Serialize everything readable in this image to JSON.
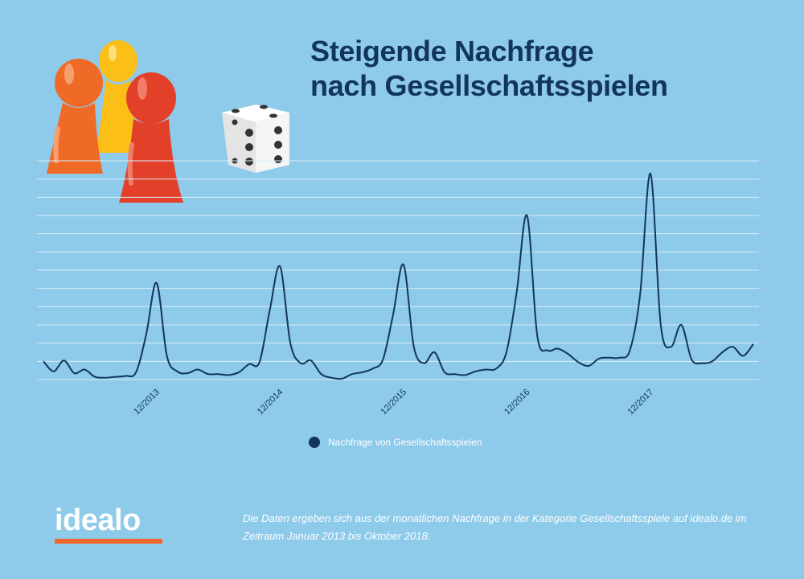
{
  "title_lines": [
    "Steigende Nachfrage",
    "nach Gesellschaftsspielen"
  ],
  "logo_text": "idealo",
  "footnote": "Die Daten ergeben sich aus der monatlichen Nachfrage in der Kategorie Gesellschaftsspiele auf idealo.de im Zeitraum Januar 2013 bis Oktober 2018.",
  "decorations": {
    "pawn_colors": [
      "#ef6a27",
      "#fcbf18",
      "#e3402a"
    ],
    "dice": "dice-icon"
  },
  "colors": {
    "background": "#8ecae9",
    "line": "#12355f",
    "title": "#12355f",
    "logo_bar": "#f1662a",
    "grid": "#d8eef9"
  },
  "chart_data": {
    "type": "line",
    "title": "Steigende Nachfrage nach Gesellschaftsspielen",
    "x_ticks": [
      "12/2013",
      "12/2014",
      "12/2015",
      "12/2016",
      "12/2017"
    ],
    "x": [
      "01/2013",
      "02/2013",
      "03/2013",
      "04/2013",
      "05/2013",
      "06/2013",
      "07/2013",
      "08/2013",
      "09/2013",
      "10/2013",
      "11/2013",
      "12/2013",
      "01/2014",
      "02/2014",
      "03/2014",
      "04/2014",
      "05/2014",
      "06/2014",
      "07/2014",
      "08/2014",
      "09/2014",
      "10/2014",
      "11/2014",
      "12/2014",
      "01/2015",
      "02/2015",
      "03/2015",
      "04/2015",
      "05/2015",
      "06/2015",
      "07/2015",
      "08/2015",
      "09/2015",
      "10/2015",
      "11/2015",
      "12/2015",
      "01/2016",
      "02/2016",
      "03/2016",
      "04/2016",
      "05/2016",
      "06/2016",
      "07/2016",
      "08/2016",
      "09/2016",
      "10/2016",
      "11/2016",
      "12/2016",
      "01/2017",
      "02/2017",
      "03/2017",
      "04/2017",
      "05/2017",
      "06/2017",
      "07/2017",
      "08/2017",
      "09/2017",
      "10/2017",
      "11/2017",
      "12/2017",
      "01/2018",
      "02/2018",
      "03/2018",
      "04/2018",
      "05/2018",
      "06/2018",
      "07/2018",
      "08/2018",
      "09/2018",
      "10/2018"
    ],
    "series": [
      {
        "name": "Nachfrage von Gesellschaftsspielen",
        "values": [
          1.0,
          0.45,
          1.05,
          0.35,
          0.55,
          0.15,
          0.1,
          0.15,
          0.2,
          0.4,
          2.5,
          5.3,
          1.3,
          0.45,
          0.35,
          0.55,
          0.3,
          0.3,
          0.25,
          0.4,
          0.85,
          0.95,
          3.8,
          6.2,
          2.0,
          0.9,
          1.05,
          0.3,
          0.1,
          0.05,
          0.3,
          0.4,
          0.6,
          1.1,
          3.6,
          6.3,
          1.8,
          0.9,
          1.5,
          0.4,
          0.3,
          0.25,
          0.45,
          0.55,
          0.6,
          1.5,
          4.8,
          9.0,
          2.4,
          1.6,
          1.7,
          1.4,
          0.95,
          0.75,
          1.15,
          1.2,
          1.2,
          1.6,
          4.7,
          11.3,
          3.0,
          1.8,
          3.0,
          1.1,
          0.9,
          1.0,
          1.5,
          1.8,
          1.3,
          1.95
        ]
      }
    ],
    "ylim": [
      0,
      12
    ],
    "y_ticks_shown": false,
    "grid": true,
    "legend": "bottom-center"
  }
}
